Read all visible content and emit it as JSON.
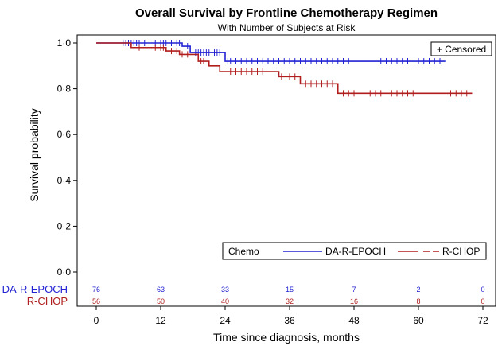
{
  "chart_data": {
    "type": "line",
    "title": "Overall Survival  by Frontline Chemotherapy Regimen",
    "subtitle": "With Number of Subjects at Risk",
    "xlabel": "Time since diagnosis, months",
    "ylabel": "Survival probability",
    "xlim": [
      0,
      72
    ],
    "ylim": [
      0,
      1
    ],
    "x_ticks": [
      "0",
      "12",
      "24",
      "36",
      "48",
      "60",
      "72"
    ],
    "y_ticks": [
      "0·0",
      "0·2",
      "0·4",
      "0·6",
      "0·8",
      "1·0"
    ],
    "grid": false,
    "censored_label": "+ Censored",
    "legend": {
      "title": "Chemo",
      "placement": "bottom-right"
    },
    "colors": {
      "DA-R-EPOCH": "#2323d4",
      "R-CHOP": "#b01e1e"
    },
    "series": [
      {
        "name": "DA-R-EPOCH",
        "style": "solid",
        "steps": [
          [
            0,
            1.0
          ],
          [
            16,
            0.986
          ],
          [
            17.5,
            0.958
          ],
          [
            24,
            0.92
          ],
          [
            65,
            0.92
          ]
        ],
        "censored": [
          5,
          5.5,
          6,
          6.5,
          7,
          7.5,
          8,
          9,
          10,
          11,
          12,
          12.5,
          13,
          14,
          15,
          15.5,
          17,
          18,
          18.5,
          19,
          19.5,
          20,
          20.5,
          21,
          22,
          22.5,
          23,
          24.5,
          25,
          26,
          27,
          28,
          29,
          30,
          31,
          32,
          33,
          34,
          35,
          36,
          37,
          38,
          39,
          40,
          41,
          42,
          43,
          44,
          45,
          46,
          47,
          53,
          54,
          55,
          56,
          57,
          58,
          60,
          61,
          62,
          63,
          64
        ]
      },
      {
        "name": "R-CHOP",
        "style": "dashed",
        "steps": [
          [
            0,
            1.0
          ],
          [
            6.5,
            0.98
          ],
          [
            13,
            0.965
          ],
          [
            15.5,
            0.95
          ],
          [
            19,
            0.92
          ],
          [
            21,
            0.9
          ],
          [
            23,
            0.875
          ],
          [
            34,
            0.853
          ],
          [
            38,
            0.822
          ],
          [
            45,
            0.78
          ],
          [
            70,
            0.78
          ]
        ],
        "censored": [
          8,
          10,
          11,
          12,
          12.5,
          14,
          15,
          16,
          17,
          18,
          19.5,
          20,
          25,
          26,
          27,
          28,
          29,
          30,
          31,
          34.5,
          36,
          37,
          39,
          40,
          41,
          42,
          43,
          44,
          46,
          47,
          48,
          51,
          52,
          53,
          55,
          56,
          57,
          58,
          59,
          66,
          67,
          68,
          69
        ]
      }
    ],
    "risk_table": {
      "rows": [
        {
          "label": "DA-R-EPOCH",
          "values": [
            "76",
            "63",
            "33",
            "15",
            "7",
            "2",
            "0"
          ]
        },
        {
          "label": "R-CHOP",
          "values": [
            "56",
            "50",
            "40",
            "32",
            "16",
            "8",
            "0"
          ]
        }
      ]
    }
  }
}
